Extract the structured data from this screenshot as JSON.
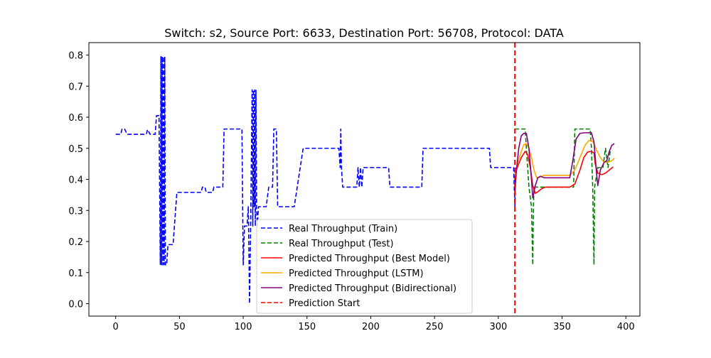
{
  "chart_data": {
    "type": "line",
    "title": "Switch: s2, Source Port: 6633, Destination Port: 56708, Protocol: DATA",
    "xlabel": "",
    "ylabel": "",
    "xlim": [
      -21,
      411
    ],
    "ylim": [
      -0.04,
      0.84
    ],
    "xticks": [
      0,
      50,
      100,
      150,
      200,
      250,
      300,
      350,
      400
    ],
    "yticks": [
      0.0,
      0.1,
      0.2,
      0.3,
      0.4,
      0.5,
      0.6,
      0.7,
      0.8
    ],
    "grid": false,
    "legend_position": "lower center",
    "prediction_start_x": 313,
    "series": [
      {
        "name": "Real Throughput (Train)",
        "color": "#0000ff",
        "dash": "dashed",
        "points": [
          [
            0,
            0.545
          ],
          [
            4,
            0.545
          ],
          [
            5,
            0.562
          ],
          [
            7,
            0.562
          ],
          [
            9,
            0.545
          ],
          [
            24,
            0.545
          ],
          [
            25,
            0.56
          ],
          [
            27,
            0.545
          ],
          [
            31,
            0.545
          ],
          [
            32,
            0.605
          ],
          [
            34,
            0.605
          ],
          [
            35,
            0.125
          ],
          [
            35.5,
            0.795
          ],
          [
            36,
            0.125
          ],
          [
            36.5,
            0.795
          ],
          [
            37,
            0.125
          ],
          [
            37.5,
            0.795
          ],
          [
            38,
            0.125
          ],
          [
            38.5,
            0.795
          ],
          [
            39,
            0.125
          ],
          [
            40,
            0.125
          ],
          [
            41,
            0.19
          ],
          [
            45,
            0.19
          ],
          [
            48,
            0.358
          ],
          [
            67,
            0.358
          ],
          [
            68,
            0.375
          ],
          [
            70,
            0.375
          ],
          [
            71,
            0.358
          ],
          [
            76,
            0.358
          ],
          [
            77,
            0.375
          ],
          [
            84,
            0.375
          ],
          [
            85,
            0.562
          ],
          [
            99,
            0.562
          ],
          [
            100,
            0.125
          ],
          [
            101,
            0.25
          ],
          [
            103,
            0.25
          ],
          [
            104,
            0.312
          ],
          [
            105,
            0.0
          ],
          [
            106,
            0.312
          ],
          [
            107,
            0.688
          ],
          [
            107.5,
            0.25
          ],
          [
            108,
            0.688
          ],
          [
            108.5,
            0.312
          ],
          [
            109,
            0.688
          ],
          [
            109.5,
            0.25
          ],
          [
            110,
            0.688
          ],
          [
            110.5,
            0.312
          ],
          [
            111,
            0.25
          ],
          [
            112,
            0.312
          ],
          [
            118,
            0.312
          ],
          [
            120,
            0.375
          ],
          [
            123,
            0.375
          ],
          [
            124,
            0.562
          ],
          [
            126,
            0.562
          ],
          [
            127,
            0.312
          ],
          [
            140,
            0.312
          ],
          [
            147,
            0.5
          ],
          [
            175,
            0.5
          ],
          [
            176,
            0.438
          ],
          [
            176.5,
            0.562
          ],
          [
            177,
            0.438
          ],
          [
            178,
            0.375
          ],
          [
            189,
            0.375
          ],
          [
            190,
            0.438
          ],
          [
            191,
            0.375
          ],
          [
            192,
            0.438
          ],
          [
            193,
            0.375
          ],
          [
            194,
            0.438
          ],
          [
            214,
            0.438
          ],
          [
            215,
            0.375
          ],
          [
            240,
            0.375
          ],
          [
            241,
            0.5
          ],
          [
            293,
            0.5
          ],
          [
            294,
            0.438
          ],
          [
            312,
            0.438
          ],
          [
            313,
            0.312
          ],
          [
            313.5,
            0.438
          ]
        ]
      },
      {
        "name": "Real Throughput (Test)",
        "color": "#008000",
        "dash": "dashed",
        "points": [
          [
            313,
            0.562
          ],
          [
            321,
            0.562
          ],
          [
            322,
            0.5
          ],
          [
            324,
            0.375
          ],
          [
            326,
            0.312
          ],
          [
            327,
            0.125
          ],
          [
            327.5,
            0.312
          ],
          [
            328,
            0.375
          ],
          [
            359,
            0.375
          ],
          [
            360,
            0.562
          ],
          [
            372,
            0.562
          ],
          [
            373,
            0.5
          ],
          [
            374,
            0.375
          ],
          [
            375,
            0.125
          ],
          [
            375.5,
            0.375
          ],
          [
            378,
            0.438
          ],
          [
            382,
            0.438
          ],
          [
            384,
            0.5
          ],
          [
            386,
            0.438
          ],
          [
            388,
            0.5
          ]
        ]
      },
      {
        "name": "Predicted Throughput (Best Model)",
        "color": "#ff0000",
        "dash": "solid",
        "points": [
          [
            313,
            0.412
          ],
          [
            315,
            0.44
          ],
          [
            318,
            0.47
          ],
          [
            321,
            0.49
          ],
          [
            323,
            0.48
          ],
          [
            325,
            0.44
          ],
          [
            327,
            0.38
          ],
          [
            329,
            0.355
          ],
          [
            331,
            0.36
          ],
          [
            334,
            0.37
          ],
          [
            337,
            0.375
          ],
          [
            345,
            0.375
          ],
          [
            356,
            0.375
          ],
          [
            360,
            0.385
          ],
          [
            364,
            0.43
          ],
          [
            367,
            0.47
          ],
          [
            370,
            0.488
          ],
          [
            373,
            0.49
          ],
          [
            375,
            0.485
          ],
          [
            376,
            0.45
          ],
          [
            378,
            0.42
          ],
          [
            381,
            0.415
          ],
          [
            384,
            0.42
          ],
          [
            387,
            0.43
          ],
          [
            390,
            0.44
          ]
        ]
      },
      {
        "name": "Predicted Throughput (LSTM)",
        "color": "#ffa500",
        "dash": "solid",
        "points": [
          [
            313,
            0.412
          ],
          [
            315,
            0.45
          ],
          [
            318,
            0.49
          ],
          [
            320,
            0.512
          ],
          [
            322,
            0.515
          ],
          [
            324,
            0.5
          ],
          [
            326,
            0.47
          ],
          [
            328,
            0.43
          ],
          [
            330,
            0.405
          ],
          [
            333,
            0.408
          ],
          [
            336,
            0.413
          ],
          [
            345,
            0.413
          ],
          [
            356,
            0.413
          ],
          [
            360,
            0.43
          ],
          [
            364,
            0.47
          ],
          [
            368,
            0.51
          ],
          [
            371,
            0.525
          ],
          [
            373,
            0.526
          ],
          [
            375,
            0.515
          ],
          [
            377,
            0.495
          ],
          [
            380,
            0.47
          ],
          [
            383,
            0.455
          ],
          [
            386,
            0.455
          ],
          [
            389,
            0.46
          ],
          [
            391,
            0.468
          ]
        ]
      },
      {
        "name": "Predicted Throughput (Bidirectional)",
        "color": "#800080",
        "dash": "solid",
        "points": [
          [
            313,
            0.35
          ],
          [
            314,
            0.42
          ],
          [
            316,
            0.5
          ],
          [
            318,
            0.54
          ],
          [
            320,
            0.548
          ],
          [
            322,
            0.548
          ],
          [
            324,
            0.5
          ],
          [
            326,
            0.4
          ],
          [
            327,
            0.34
          ],
          [
            329,
            0.38
          ],
          [
            331,
            0.405
          ],
          [
            333,
            0.41
          ],
          [
            336,
            0.405
          ],
          [
            345,
            0.405
          ],
          [
            356,
            0.405
          ],
          [
            358,
            0.45
          ],
          [
            361,
            0.53
          ],
          [
            364,
            0.548
          ],
          [
            368,
            0.55
          ],
          [
            373,
            0.55
          ],
          [
            375,
            0.52
          ],
          [
            377,
            0.42
          ],
          [
            378,
            0.38
          ],
          [
            380,
            0.43
          ],
          [
            383,
            0.455
          ],
          [
            385,
            0.46
          ],
          [
            387,
            0.49
          ],
          [
            389,
            0.51
          ],
          [
            391,
            0.515
          ]
        ]
      }
    ]
  }
}
